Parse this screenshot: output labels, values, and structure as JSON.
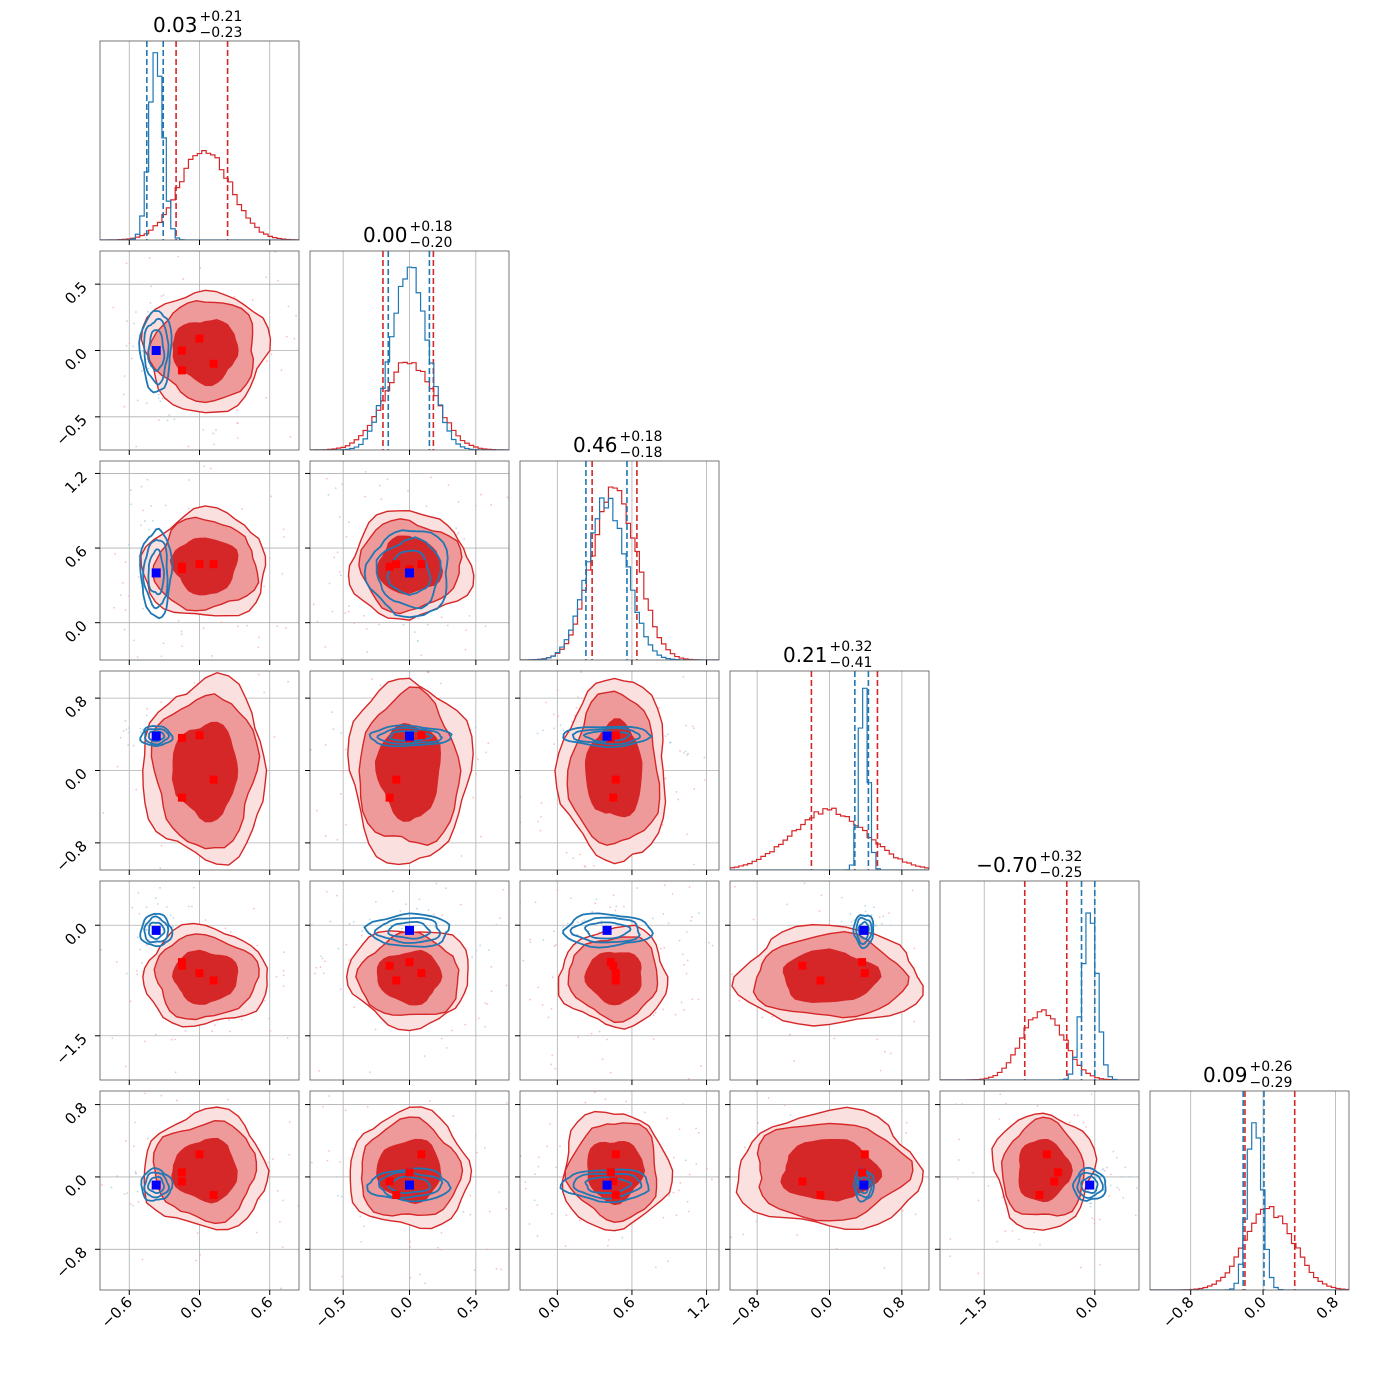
{
  "chart_data": {
    "type": "corner",
    "n_params": 6,
    "colors": {
      "sample_a": "#d62728",
      "sample_b": "#1f77b4",
      "truth_marker": "#0000ff",
      "marker_a": "#ff0000"
    },
    "grid": true,
    "axes": [
      {
        "range": [
          -0.85,
          0.85
        ],
        "ticks": [
          -0.6,
          0.0,
          0.6
        ],
        "tick_labels": [
          "−0.6",
          "0.0",
          "0.6"
        ]
      },
      {
        "range": [
          -0.75,
          0.75
        ],
        "ticks": [
          -0.5,
          0.0,
          0.5
        ],
        "tick_labels": [
          "−0.5",
          "0.0",
          "0.5"
        ]
      },
      {
        "range": [
          -0.3,
          1.3
        ],
        "ticks": [
          0.0,
          0.6,
          1.2
        ],
        "tick_labels": [
          "0.0",
          "0.6",
          "1.2"
        ]
      },
      {
        "range": [
          -1.1,
          1.1
        ],
        "ticks": [
          -0.8,
          0.0,
          0.8
        ],
        "tick_labels": [
          "−0.8",
          "0.0",
          "0.8"
        ]
      },
      {
        "range": [
          -2.1,
          0.6
        ],
        "ticks": [
          -1.5,
          0.0
        ],
        "tick_labels": [
          "−1.5",
          "0.0"
        ]
      },
      {
        "range": [
          -1.25,
          0.95
        ],
        "ticks": [
          -0.8,
          0.0,
          0.8
        ],
        "tick_labels": [
          "−0.8",
          "0.0",
          "0.8"
        ]
      }
    ],
    "titles": [
      {
        "value": "0.03",
        "plus": "+0.21",
        "minus": "−0.23"
      },
      {
        "value": "0.00",
        "plus": "+0.18",
        "minus": "−0.20"
      },
      {
        "value": "0.46",
        "plus": "+0.18",
        "minus": "−0.18"
      },
      {
        "value": "0.21",
        "plus": "+0.32",
        "minus": "−0.41"
      },
      {
        "value": "−0.70",
        "plus": "+0.32",
        "minus": "−0.25"
      },
      {
        "value": "0.09",
        "plus": "+0.26",
        "minus": "−0.29"
      }
    ],
    "sample_a": {
      "mean": [
        0.05,
        0.0,
        0.46,
        0.0,
        -0.7,
        0.07
      ],
      "sd": [
        0.22,
        0.19,
        0.18,
        0.42,
        0.28,
        0.27
      ],
      "quantiles": [
        [
          -0.2,
          0.24
        ],
        [
          -0.2,
          0.18
        ],
        [
          0.28,
          0.64
        ],
        [
          -0.2,
          0.53
        ],
        [
          -0.95,
          -0.38
        ],
        [
          -0.2,
          0.35
        ]
      ],
      "hist_peak": [
        0.45,
        0.45,
        0.87,
        0.3,
        0.35,
        0.4
      ],
      "square_markers": [
        [
          -0.15,
          0.0,
          0.43,
          0.36,
          -0.5,
          0.05
        ],
        [
          0.0,
          0.09,
          0.47,
          0.39,
          -0.65,
          0.25
        ],
        [
          0.12,
          -0.1,
          0.47,
          -0.1,
          -0.75,
          -0.2
        ],
        [
          -0.15,
          -0.15,
          0.45,
          -0.3,
          -0.55,
          -0.05
        ]
      ]
    },
    "sample_b": {
      "mean": [
        -0.37,
        0.0,
        0.4,
        0.38,
        -0.07,
        -0.09
      ],
      "sd": [
        0.06,
        0.14,
        0.16,
        0.05,
        0.1,
        0.08
      ],
      "quantiles": [
        [
          -0.45,
          -0.31
        ],
        [
          -0.16,
          0.15
        ],
        [
          0.23,
          0.56
        ],
        [
          0.28,
          0.43
        ],
        [
          -0.18,
          0.0
        ],
        [
          -0.22,
          0.01
        ]
      ],
      "hist_peak": [
        0.93,
        0.9,
        0.8,
        0.95,
        0.85,
        0.9
      ]
    },
    "truth": [
      -0.37,
      0.0,
      0.4,
      0.38,
      -0.07,
      -0.09
    ]
  }
}
